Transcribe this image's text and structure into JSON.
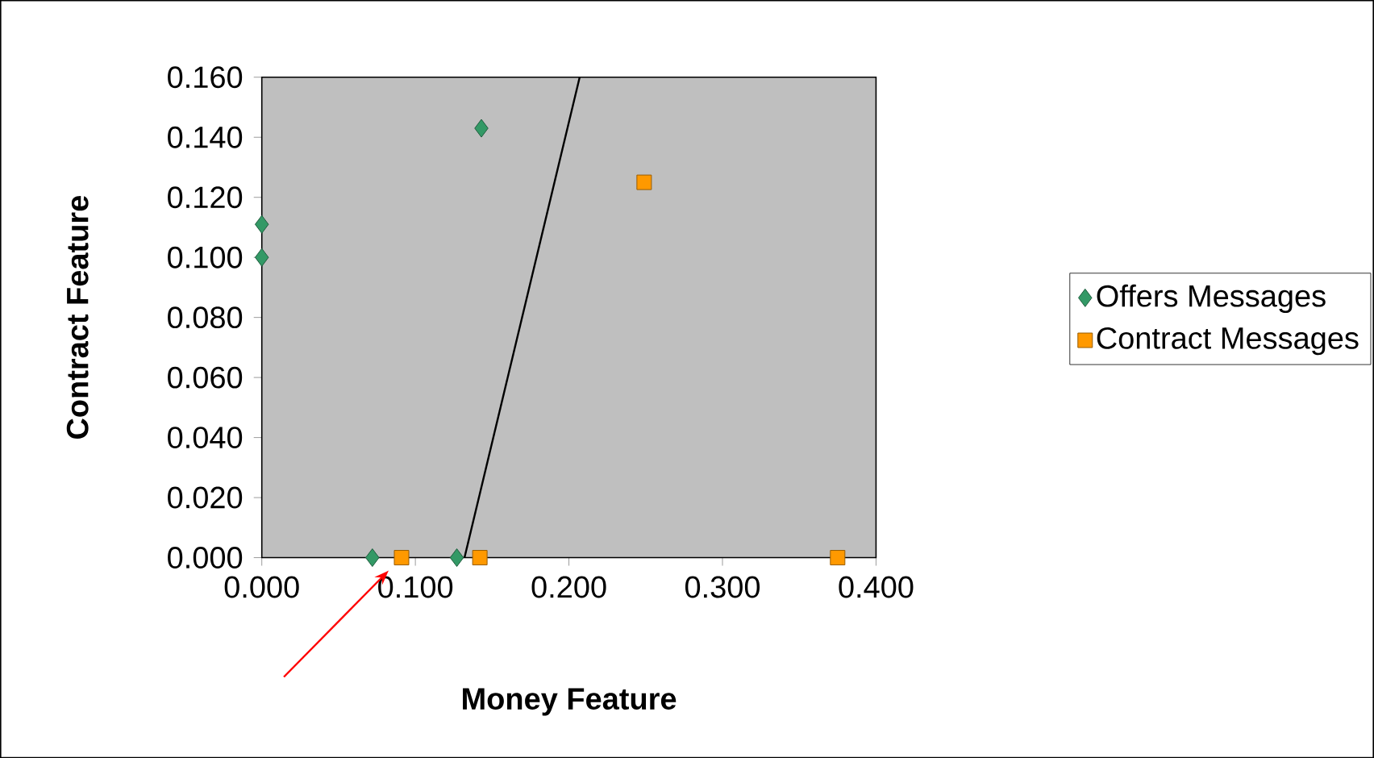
{
  "chart_data": {
    "type": "scatter",
    "xlabel": "Money Feature",
    "ylabel": "Contract Feature",
    "xlim": [
      0,
      0.4
    ],
    "ylim": [
      0,
      0.16
    ],
    "xticks": [
      {
        "value": 0,
        "label": "0.000"
      },
      {
        "value": 0.1,
        "label": "0.100"
      },
      {
        "value": 0.2,
        "label": "0.200"
      },
      {
        "value": 0.3,
        "label": "0.300"
      },
      {
        "value": 0.4,
        "label": "0.400"
      }
    ],
    "yticks": [
      {
        "value": 0,
        "label": "0.000"
      },
      {
        "value": 0.02,
        "label": "0.020"
      },
      {
        "value": 0.04,
        "label": "0.040"
      },
      {
        "value": 0.06,
        "label": "0.060"
      },
      {
        "value": 0.08,
        "label": "0.080"
      },
      {
        "value": 0.1,
        "label": "0.100"
      },
      {
        "value": 0.12,
        "label": "0.120"
      },
      {
        "value": 0.14,
        "label": "0.140"
      },
      {
        "value": 0.16,
        "label": "0.160"
      }
    ],
    "series": [
      {
        "name": "Offers Messages",
        "color": "#339966",
        "marker": "diamond",
        "x": [
          0,
          0,
          0.143,
          0.072,
          0.127
        ],
        "values": [
          0.111,
          0.1,
          0.143,
          0,
          0
        ]
      },
      {
        "name": "Contract Messages",
        "color": "#ff9900",
        "marker": "square",
        "x": [
          0.091,
          0.142,
          0.249,
          0.375
        ],
        "values": [
          0,
          0,
          0.125,
          0
        ]
      },
      {
        "type": "line",
        "color": "#000000",
        "marker": "none",
        "x": [
          0.132,
          0.207
        ],
        "values": [
          0,
          0.16
        ]
      }
    ],
    "legend": "right"
  }
}
